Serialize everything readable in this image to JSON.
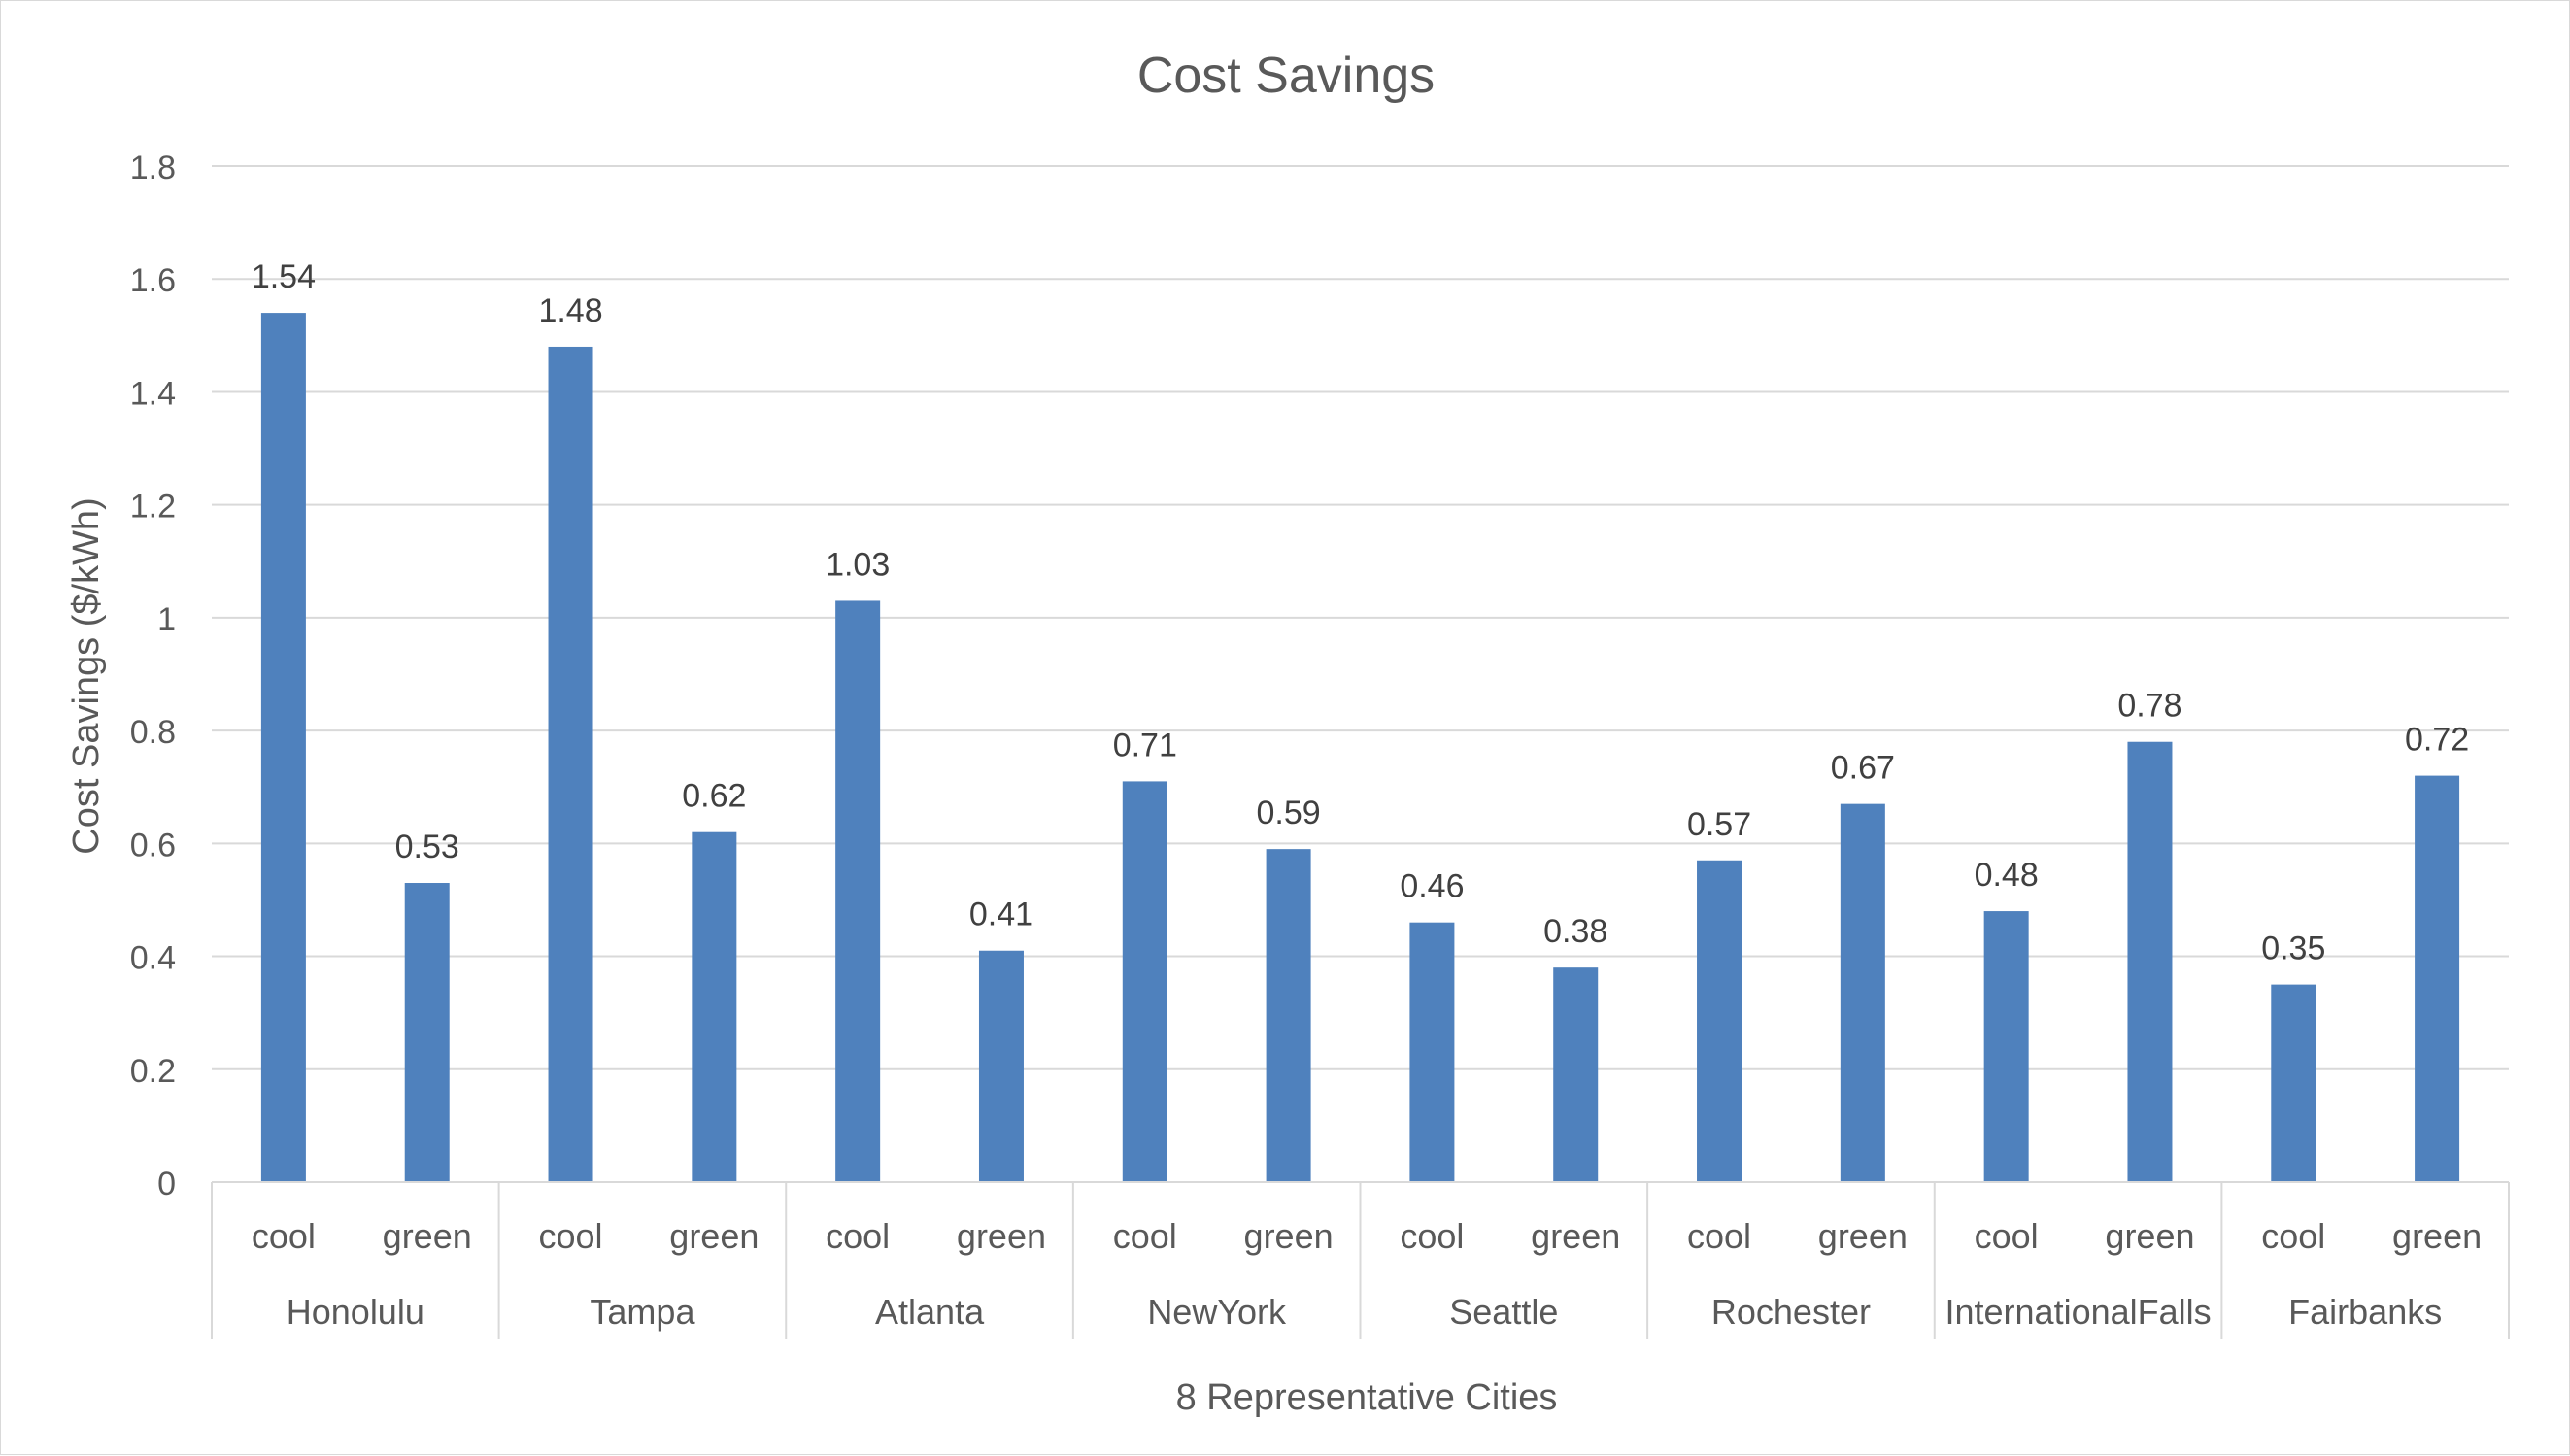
{
  "chart_data": {
    "type": "bar",
    "title": "Cost Savings",
    "xlabel": "8 Representative Cities",
    "ylabel": "Cost Savings ($/kWh)",
    "ylim": [
      0,
      1.8
    ],
    "yticks": [
      "0",
      "0.2",
      "0.4",
      "0.6",
      "0.8",
      "1",
      "1.2",
      "1.4",
      "1.6",
      "1.8"
    ],
    "grid": true,
    "legend": "none",
    "groups": [
      {
        "city": "Honolulu",
        "categories": [
          "cool",
          "green"
        ],
        "values": [
          1.54,
          0.53
        ],
        "labels": [
          "1.54",
          "0.53"
        ]
      },
      {
        "city": "Tampa",
        "categories": [
          "cool",
          "green"
        ],
        "values": [
          1.48,
          0.62
        ],
        "labels": [
          "1.48",
          "0.62"
        ]
      },
      {
        "city": "Atlanta",
        "categories": [
          "cool",
          "green"
        ],
        "values": [
          1.03,
          0.41
        ],
        "labels": [
          "1.03",
          "0.41"
        ]
      },
      {
        "city": "NewYork",
        "categories": [
          "cool",
          "green"
        ],
        "values": [
          0.71,
          0.59
        ],
        "labels": [
          "0.71",
          "0.59"
        ]
      },
      {
        "city": "Seattle",
        "categories": [
          "cool",
          "green"
        ],
        "values": [
          0.46,
          0.38
        ],
        "labels": [
          "0.46",
          "0.38"
        ]
      },
      {
        "city": "Rochester",
        "categories": [
          "cool",
          "green"
        ],
        "values": [
          0.57,
          0.67
        ],
        "labels": [
          "0.57",
          "0.67"
        ]
      },
      {
        "city": "InternationalFalls",
        "categories": [
          "cool",
          "green"
        ],
        "values": [
          0.48,
          0.78
        ],
        "labels": [
          "0.48",
          "0.78"
        ]
      },
      {
        "city": "Fairbanks",
        "categories": [
          "cool",
          "green"
        ],
        "values": [
          0.35,
          0.72
        ],
        "labels": [
          "0.35",
          "0.72"
        ]
      }
    ],
    "colors": {
      "bar": "#4f81bd",
      "grid": "#d9d9d9",
      "axis": "#d9d9d9",
      "text": "#595959",
      "label": "#404040"
    }
  }
}
